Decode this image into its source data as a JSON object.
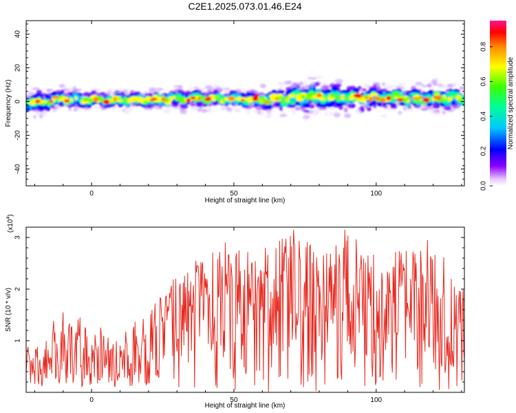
{
  "title": "C2E1.2025.073.01.46.E24",
  "chart_data": [
    {
      "type": "heatmap",
      "xlabel": "Height of straight line (km)",
      "ylabel": "Frequency (Hz)",
      "xlim": [
        -23,
        131
      ],
      "ylim": [
        -50,
        48
      ],
      "xticks": [
        0,
        50,
        100
      ],
      "yticks": [
        40,
        20,
        0,
        -20,
        -40
      ],
      "band": {
        "center_hz": [
          [
            -23,
            -1
          ],
          [
            -15,
            0
          ],
          [
            -10,
            2
          ],
          [
            -5,
            1
          ],
          [
            20,
            1
          ],
          [
            40,
            2
          ],
          [
            60,
            1
          ],
          [
            80,
            3
          ],
          [
            100,
            2
          ],
          [
            131,
            2
          ]
        ],
        "half_width_hz": [
          [
            -23,
            4
          ],
          [
            -10,
            3
          ],
          [
            0,
            2.5
          ],
          [
            50,
            3
          ],
          [
            78,
            5
          ],
          [
            100,
            4
          ],
          [
            131,
            4
          ]
        ]
      },
      "colorbar": {
        "label": "Normalized spectral amplitude",
        "range": [
          0,
          0.95
        ],
        "ticks": [
          0.0,
          0.2,
          0.4,
          0.6,
          0.8
        ]
      }
    },
    {
      "type": "line",
      "xlabel": "Height of straight line (km)",
      "ylabel": "SNR (10 * v/v)",
      "y_multiplier": "(x10",
      "y_multiplier_exp": "4",
      "y_multiplier_close": ")",
      "xlim": [
        -23,
        131
      ],
      "ylim": [
        0,
        3.2
      ],
      "xticks": [
        0,
        50,
        100
      ],
      "yticks": [
        1,
        2,
        3
      ],
      "series": [
        {
          "color": "#e8281e",
          "envelope_x": [
            -23,
            -10,
            0,
            10,
            20,
            30,
            40,
            50,
            60,
            70,
            80,
            90,
            100,
            110,
            120,
            131
          ],
          "envelope_y": [
            0.95,
            1.55,
            1.4,
            1.35,
            1.6,
            2.3,
            2.75,
            2.8,
            2.7,
            3.1,
            2.8,
            3.15,
            2.7,
            2.75,
            2.9,
            2.1
          ],
          "peaks": [
            [
              71,
              3.15
            ],
            [
              89,
              3.15
            ],
            [
              47,
              2.9
            ],
            [
              118,
              2.95
            ],
            [
              61,
              2.8
            ],
            [
              -10,
              1.55
            ],
            [
              -4,
              1.45
            ]
          ]
        }
      ]
    }
  ]
}
